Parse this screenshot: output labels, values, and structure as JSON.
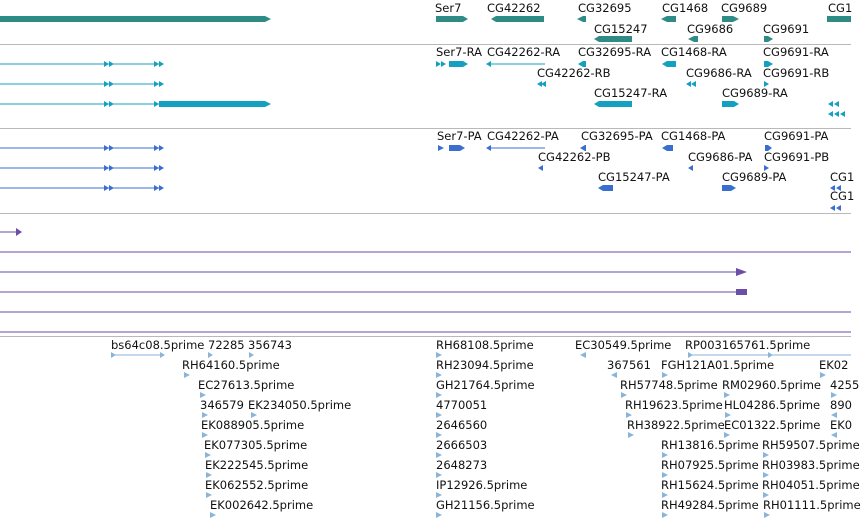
{
  "colors": {
    "gene": "#2e8b86",
    "mrna": "#14a0c0",
    "protein": "#3a6fd0",
    "evidence": "#6a4ea8",
    "est": "#8ab4d8",
    "divider": "#b9b9b9"
  },
  "tracks": {
    "genes": {
      "labels": [
        "Ser7",
        "CG42262",
        "CG32695",
        "CG1468",
        "CG9689",
        "CG1",
        "CG15247",
        "CG9686",
        "CG9691"
      ]
    },
    "transcripts": {
      "labels": [
        "Ser7-RA",
        "CG42262-RA",
        "CG32695-RA",
        "CG1468-RA",
        "CG9691-RA",
        "CG42262-RB",
        "CG9686-RA",
        "CG9691-RB",
        "CG15247-RA",
        "CG9689-RA"
      ]
    },
    "proteins": {
      "labels": [
        "Ser7-PA",
        "CG42262-PA",
        "CG32695-PA",
        "CG1468-PA",
        "CG9691-PA",
        "CG42262-PB",
        "CG9686-PA",
        "CG9691-PB",
        "CG15247-PA",
        "CG9689-PA",
        "CG1",
        "CG1"
      ]
    },
    "ests": {
      "labels": [
        "bs64c08.5prime",
        "72285",
        "356743",
        "RH68108.5prime",
        "EC30549.5prime",
        "RP003165761.5prime",
        "RH64160.5prime",
        "RH23094.5prime",
        "367561",
        "FGH121A01.5prime",
        "EK02",
        "EC27613.5prime",
        "GH21764.5prime",
        "RH57748.5prime",
        "RM02960.5prime",
        "4255",
        "346579",
        "EK234050.5prime",
        "4770051",
        "RH19623.5prime",
        "HL04286.5prime",
        "890",
        "EK088905.5prime",
        "2646560",
        "RH38922.5prime",
        "EC01322.5prime",
        "EK0",
        "EK077305.5prime",
        "2666503",
        "RH13816.5prime",
        "RH59507.5prime",
        "EK222545.5prime",
        "2648273",
        "RH07925.5prime",
        "RH03983.5prime",
        "EK062552.5prime",
        "IP12926.5prime",
        "RH15624.5prime",
        "RH04051.5prime",
        "EK002642.5prime",
        "GH21156.5prime",
        "RH49284.5prime",
        "RH01111.5prime"
      ]
    }
  }
}
